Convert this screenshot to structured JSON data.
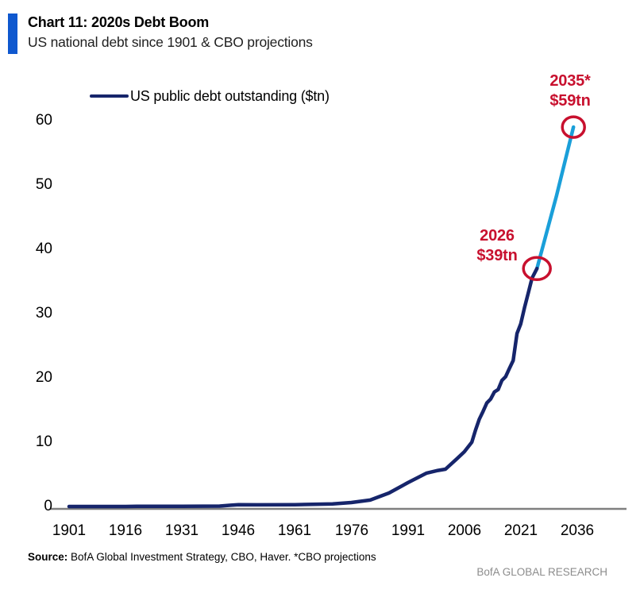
{
  "header": {
    "title": "Chart 11: 2020s Debt Boom",
    "subtitle": "US national debt since 1901 & CBO projections",
    "accent_color": "#0f58cf"
  },
  "chart_data": {
    "type": "line",
    "title": "Chart 11: 2020s Debt Boom",
    "subtitle": "US national debt since 1901 & CBO projections",
    "xlabel": "",
    "ylabel": "",
    "xlim": [
      1901,
      2036
    ],
    "ylim": [
      0,
      60
    ],
    "grid": false,
    "legend_position": "top-left",
    "axis_color": "#7f7f7f",
    "x_ticks": [
      "1901",
      "1916",
      "1931",
      "1946",
      "1961",
      "1976",
      "1991",
      "2006",
      "2021",
      "2036"
    ],
    "y_ticks": [
      "0",
      "10",
      "20",
      "30",
      "40",
      "50",
      "60"
    ],
    "legend": [
      {
        "label": "US public debt outstanding ($tn)",
        "color": "#16256b"
      }
    ],
    "series": [
      {
        "name": "US public debt outstanding ($tn)",
        "color": "#16256b",
        "points": [
          [
            1901,
            0.0
          ],
          [
            1916,
            0.0
          ],
          [
            1919,
            0.03
          ],
          [
            1931,
            0.02
          ],
          [
            1941,
            0.06
          ],
          [
            1944,
            0.2
          ],
          [
            1946,
            0.27
          ],
          [
            1951,
            0.26
          ],
          [
            1961,
            0.29
          ],
          [
            1971,
            0.4
          ],
          [
            1976,
            0.62
          ],
          [
            1981,
            1.0
          ],
          [
            1986,
            2.1
          ],
          [
            1991,
            3.7
          ],
          [
            1996,
            5.2
          ],
          [
            1999,
            5.6
          ],
          [
            2001,
            5.8
          ],
          [
            2004,
            7.4
          ],
          [
            2006,
            8.5
          ],
          [
            2008,
            10.0
          ],
          [
            2009,
            11.9
          ],
          [
            2010,
            13.6
          ],
          [
            2011,
            14.8
          ],
          [
            2012,
            16.1
          ],
          [
            2013,
            16.7
          ],
          [
            2014,
            17.8
          ],
          [
            2015,
            18.2
          ],
          [
            2016,
            19.6
          ],
          [
            2017,
            20.2
          ],
          [
            2018,
            21.5
          ],
          [
            2019,
            22.7
          ],
          [
            2020,
            26.9
          ],
          [
            2021,
            28.4
          ],
          [
            2022,
            30.9
          ],
          [
            2023,
            33.2
          ],
          [
            2024,
            35.5
          ],
          [
            2025.3,
            37.0
          ]
        ]
      },
      {
        "name": "CBO projection",
        "color": "#1a9fd9",
        "points": [
          [
            2025.3,
            37.0
          ],
          [
            2030.5,
            48.3
          ],
          [
            2035,
            59.0
          ]
        ]
      }
    ],
    "annotations": [
      {
        "line1": "2026",
        "line2": "$39tn",
        "year": 2025.3,
        "value": 37.0,
        "color": "#c8102e"
      },
      {
        "line1": "2035*",
        "line2": "$59tn",
        "year": 2035,
        "value": 59.0,
        "color": "#c8102e"
      }
    ]
  },
  "footer": {
    "source_label": "Source:",
    "source_text": " BofA Global Investment Strategy, CBO, Haver. *CBO projections",
    "brand": "BofA GLOBAL RESEARCH"
  }
}
